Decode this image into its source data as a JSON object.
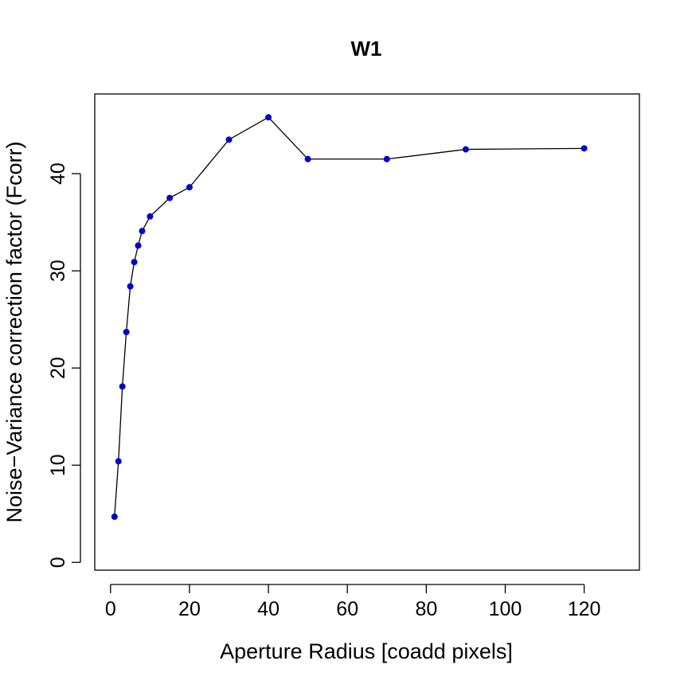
{
  "chart_data": {
    "type": "line",
    "title": "W1",
    "xlabel": "Aperture Radius [coadd pixels]",
    "ylabel": "Noise−Variance correction factor (Fcorr)",
    "xlim": [
      -4,
      134
    ],
    "ylim": [
      -0.8,
      48.2
    ],
    "xticks": [
      0,
      20,
      40,
      60,
      80,
      100,
      120
    ],
    "yticks": [
      0,
      10,
      20,
      30,
      40
    ],
    "grid": false,
    "colors": {
      "points": "#0000CC",
      "line": "#000000",
      "axes": "#000000"
    },
    "series": [
      {
        "x": [
          1,
          2,
          3,
          4,
          5,
          6,
          7,
          8,
          10,
          15,
          20,
          30,
          40,
          50,
          70,
          90,
          120
        ],
        "y": [
          4.7,
          10.4,
          18.1,
          23.7,
          28.4,
          30.9,
          32.6,
          34.1,
          35.6,
          37.5,
          38.6,
          43.5,
          45.8,
          41.5,
          41.5,
          42.5,
          42.6
        ]
      }
    ]
  }
}
